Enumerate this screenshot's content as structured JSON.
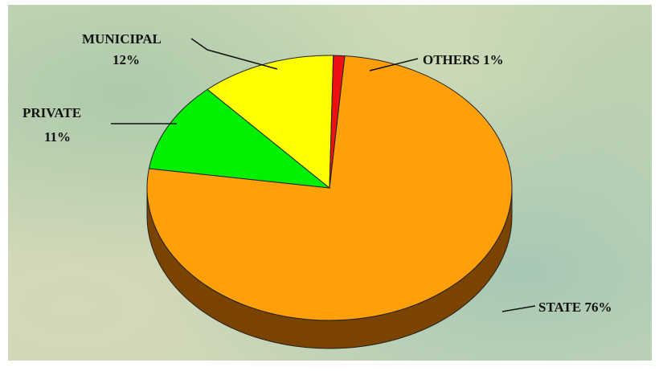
{
  "chart_data": {
    "type": "pie",
    "three_d": true,
    "categories": [
      "STATE",
      "PRIVATE",
      "MUNICIPAL",
      "OTHERS"
    ],
    "values": [
      76,
      11,
      12,
      1
    ],
    "labels": {
      "state": "STATE 76%",
      "private_name": "PRIVATE",
      "private_pct": "11%",
      "municipal_name": "MUNICIPAL",
      "municipal_pct": "12%",
      "others": "OTHERS 1%"
    },
    "colors": {
      "STATE": "#ff9f0a",
      "PRIVATE": "#00f000",
      "MUNICIPAL": "#ffff00",
      "OTHERS": "#ee1111"
    },
    "side_colors": {
      "STATE": "#7a4300",
      "PRIVATE": "#0a7a0a",
      "MUNICIPAL": "#8a8a00",
      "OTHERS": "#8a0000"
    },
    "background": "#c9d8b8"
  }
}
